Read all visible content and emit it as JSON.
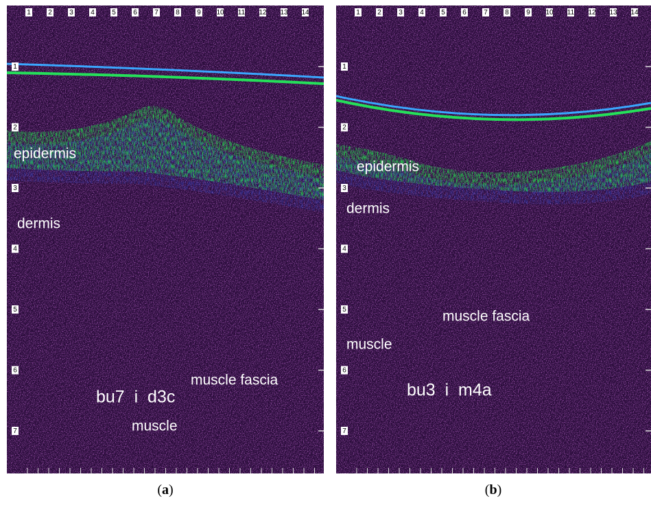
{
  "panels": [
    {
      "top_scale": [
        1,
        2,
        3,
        4,
        5,
        6,
        7,
        8,
        9,
        10,
        11,
        12,
        13,
        14
      ],
      "depth_scale": [
        1,
        2,
        3,
        4,
        5,
        6,
        7
      ],
      "labels": [
        "epidermis",
        "dermis",
        "muscle fascia",
        "muscle"
      ],
      "sample_id": "bu7  i  d3c",
      "caption": {
        "open": "(",
        "letter": "a",
        "close": ")"
      }
    },
    {
      "top_scale": [
        1,
        2,
        3,
        4,
        5,
        6,
        7,
        8,
        9,
        10,
        11,
        12,
        13,
        14
      ],
      "depth_scale": [
        1,
        2,
        3,
        4,
        5,
        6,
        7
      ],
      "labels": [
        "epidermis",
        "dermis",
        "muscle fascia",
        "muscle"
      ],
      "sample_id": "bu3  i  m4a",
      "caption": {
        "open": "(",
        "letter": "b",
        "close": ")"
      }
    }
  ]
}
